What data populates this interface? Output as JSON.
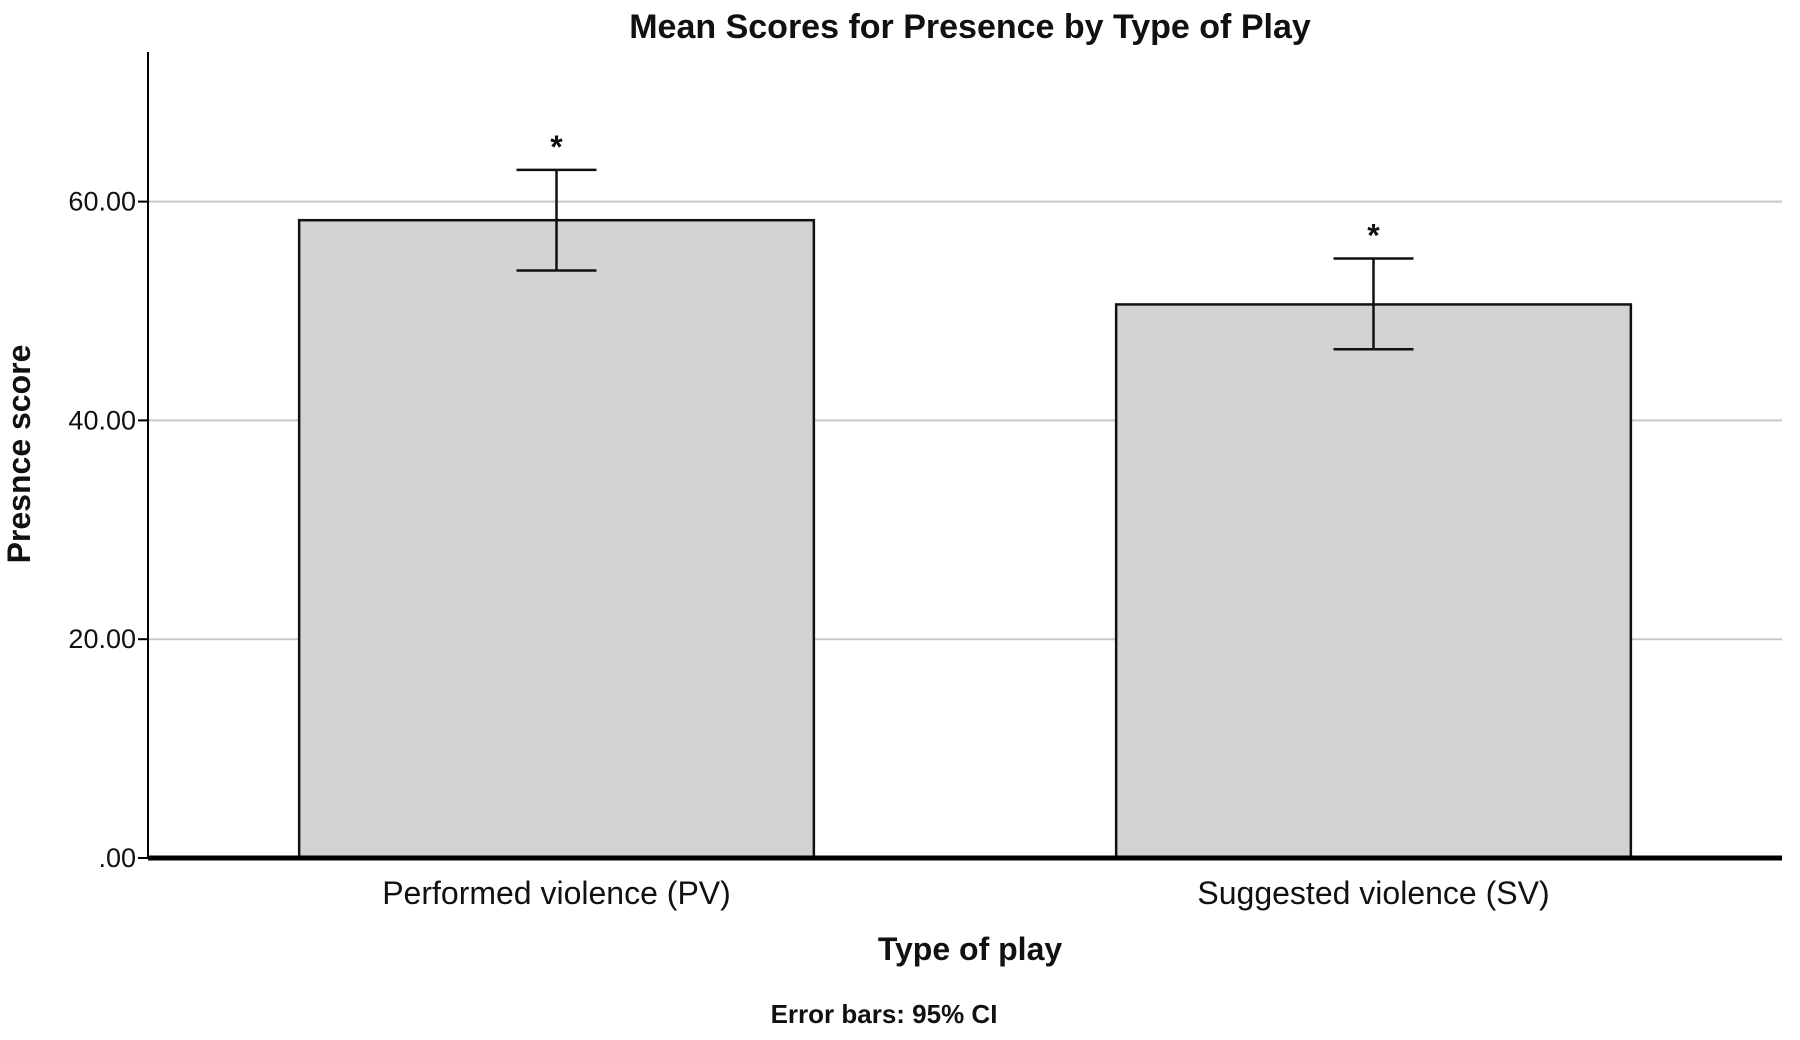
{
  "chart_data": {
    "type": "bar",
    "title": "Mean Scores for Presence by Type of Play",
    "xlabel": "Type of play",
    "ylabel": "Presnce score",
    "categories": [
      "Performed violence (PV)",
      "Suggested violence (SV)"
    ],
    "values": [
      58.3,
      50.6
    ],
    "error_bars": {
      "type": "95% CI",
      "lower": [
        53.7,
        46.5
      ],
      "upper": [
        62.9,
        54.8
      ]
    },
    "annotations": [
      "*",
      "*"
    ],
    "ylim": [
      0,
      74
    ],
    "yticks": [
      0,
      20,
      40,
      60
    ],
    "ytick_labels": [
      ".00",
      "20.00",
      "40.00",
      "60.00"
    ],
    "grid": true,
    "footnote": "Error bars: 95% CI",
    "colors": {
      "bar_fill": "#d3d3d3",
      "bar_stroke": "#111111",
      "grid": "#c8c8c8",
      "axis": "#000000"
    }
  }
}
